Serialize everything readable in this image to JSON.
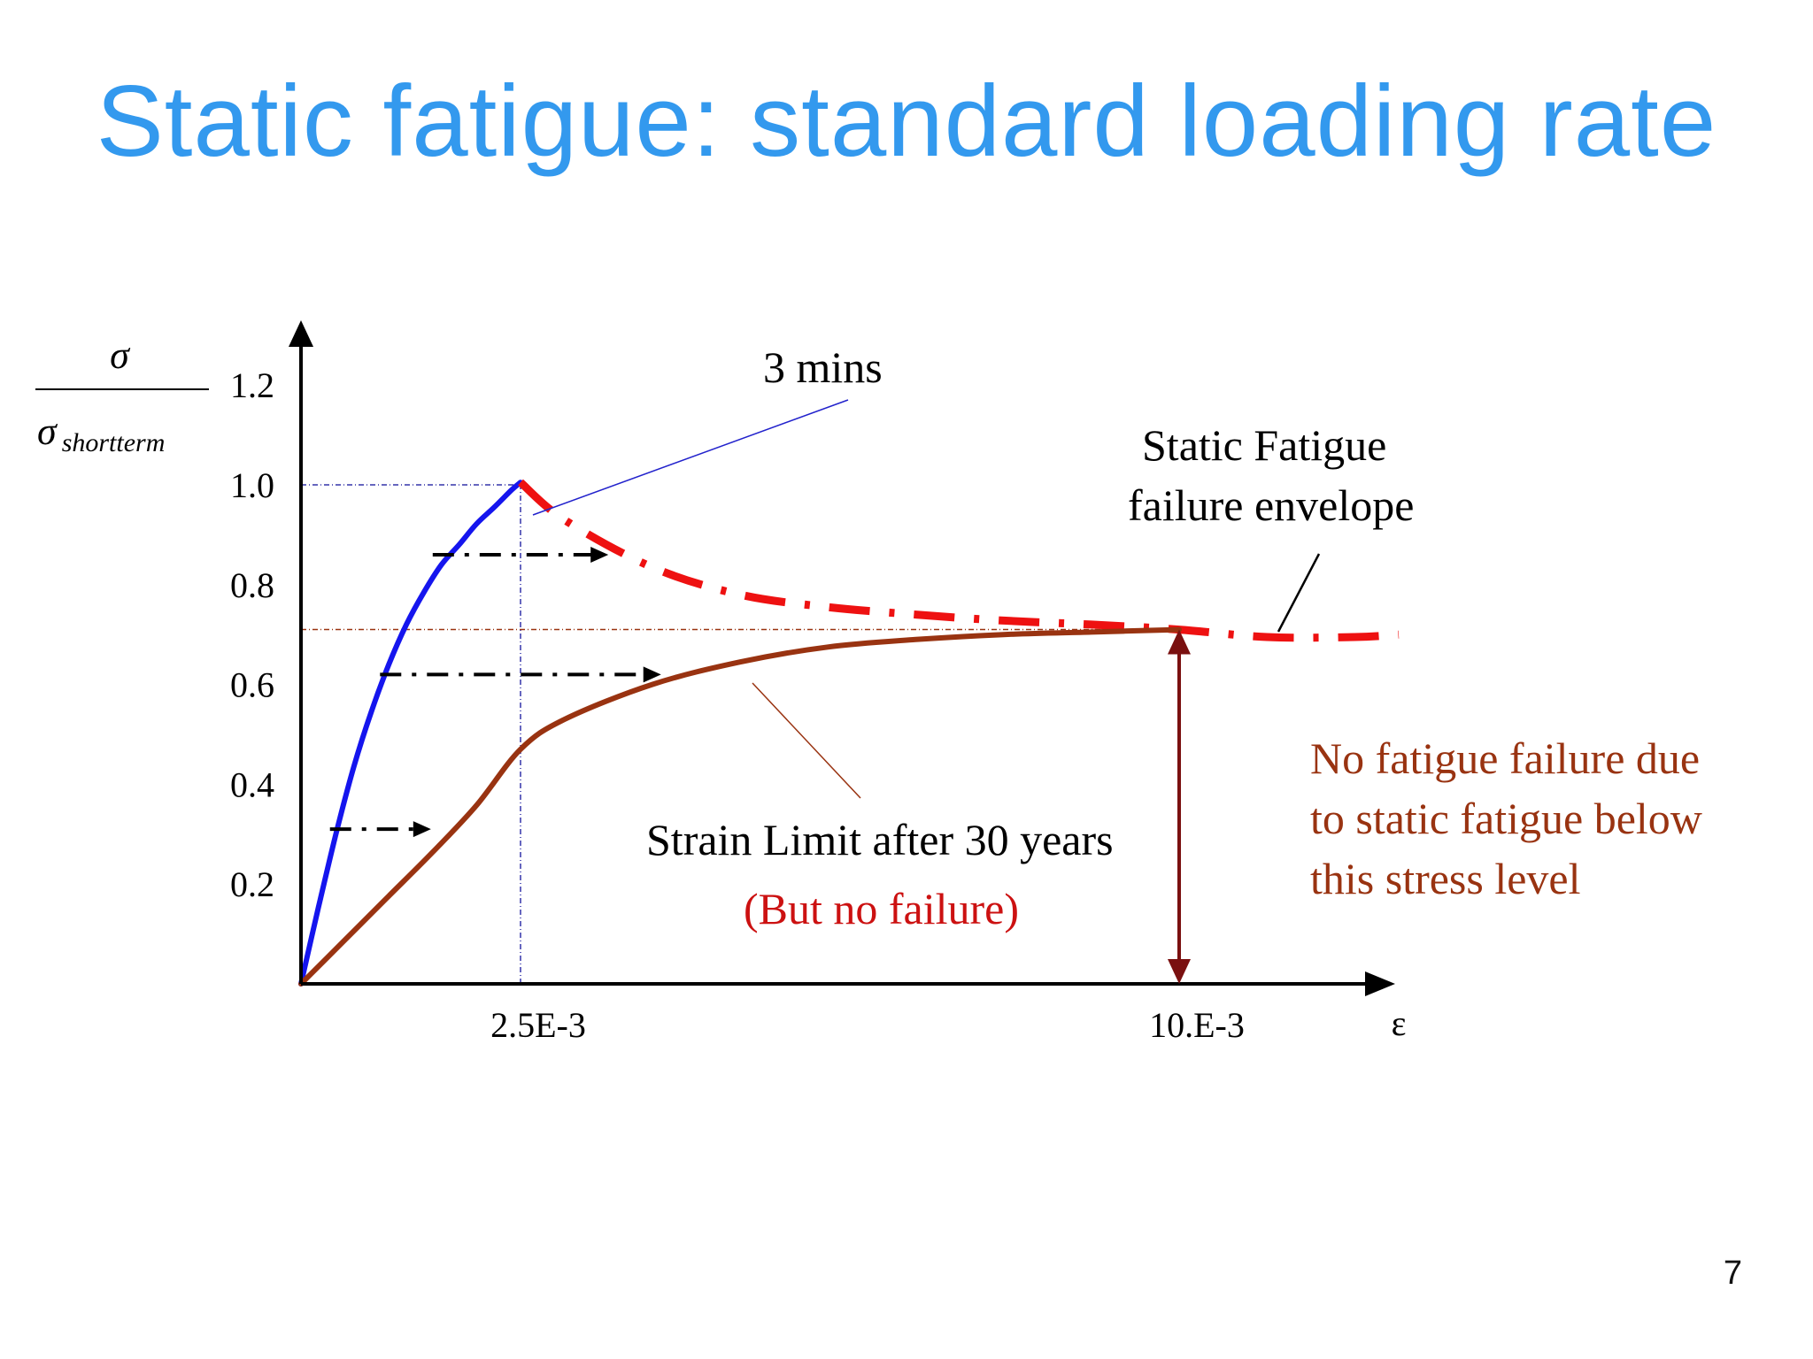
{
  "slide": {
    "title": "Static fatigue: standard loading rate",
    "page_number": "7"
  },
  "chart_data": {
    "type": "line",
    "title": "",
    "ylabel": {
      "numerator": "σ",
      "denominator_symbol": "σ",
      "denominator_subscript": "shortterm"
    },
    "xlabel": "ε",
    "xlim": [
      0,
      0.0125
    ],
    "ylim": [
      0,
      1.3
    ],
    "y_ticks": [
      {
        "value": 0.2,
        "label": "0.2"
      },
      {
        "value": 0.4,
        "label": "0.4"
      },
      {
        "value": 0.6,
        "label": "0.6"
      },
      {
        "value": 0.8,
        "label": "0.8"
      },
      {
        "value": 1.0,
        "label": "1.0"
      },
      {
        "value": 1.2,
        "label": "1.2"
      }
    ],
    "x_ticks": [
      {
        "value": 0.0025,
        "label": "2.5E-3"
      },
      {
        "value": 0.01,
        "label": "10.E-3"
      }
    ],
    "grid": false,
    "series": [
      {
        "role": "short-term-loading",
        "color": "#1515ee",
        "style": "solid",
        "x": [
          0,
          0.0002,
          0.0004,
          0.0006,
          0.0008,
          0.001,
          0.0012,
          0.0014,
          0.0016,
          0.0018,
          0.002,
          0.0022,
          0.0024,
          0.0025
        ],
        "y": [
          0,
          0.154,
          0.302,
          0.434,
          0.545,
          0.64,
          0.72,
          0.785,
          0.84,
          0.88,
          0.922,
          0.955,
          0.99,
          1.005
        ]
      },
      {
        "role": "static-fatigue-failure-envelope",
        "color": "#ee1111",
        "style": "dashdot",
        "x": [
          0.0025,
          0.003,
          0.004,
          0.005,
          0.006,
          0.007,
          0.008,
          0.009,
          0.01,
          0.011,
          0.012,
          0.0125
        ],
        "y": [
          1.005,
          0.93,
          0.835,
          0.78,
          0.755,
          0.74,
          0.728,
          0.72,
          0.71,
          0.695,
          0.695,
          0.7
        ]
      },
      {
        "role": "strain-limit-after-30-years",
        "color": "#993311",
        "style": "solid",
        "x": [
          0,
          0.0005,
          0.001,
          0.0015,
          0.002,
          0.0025,
          0.003,
          0.004,
          0.005,
          0.006,
          0.007,
          0.008,
          0.009,
          0.01
        ],
        "y": [
          0,
          0.088,
          0.176,
          0.264,
          0.358,
          0.47,
          0.53,
          0.6,
          0.645,
          0.675,
          0.69,
          0.7,
          0.705,
          0.71
        ]
      }
    ],
    "reference_lines": [
      {
        "role": "y-1.0-guide",
        "color": "#3333aa",
        "y": 1.0,
        "x_from": 0,
        "x_to": 0.0025
      },
      {
        "role": "x-2.5e-3-guide",
        "color": "#3333aa",
        "x": 0.0025,
        "y_from": 0,
        "y_to": 1.0
      },
      {
        "role": "y-0.71-guide",
        "color": "#993311",
        "y": 0.71,
        "x_from": 0,
        "x_to": 0.01
      }
    ],
    "creep_arrows": [
      {
        "y": 0.86,
        "x_from": 0.0015,
        "x_to": 0.0035
      },
      {
        "y": 0.62,
        "x_from": 0.0009,
        "x_to": 0.0041
      },
      {
        "y": 0.31,
        "x_from": 0.00033,
        "x_to": 0.00148
      }
    ],
    "stress_level_arrow": {
      "x": 0.01,
      "y_from": 0,
      "y_to": 0.71,
      "color": "#7a1010"
    },
    "annotations": [
      {
        "key": "three_mins",
        "text": "3 mins",
        "color": "#000000"
      },
      {
        "key": "envelope_line1",
        "text": "Static Fatigue",
        "color": "#000000"
      },
      {
        "key": "envelope_line2",
        "text": "failure envelope",
        "color": "#000000"
      },
      {
        "key": "strain_limit",
        "text": "Strain Limit after 30 years",
        "color": "#000000"
      },
      {
        "key": "no_failure",
        "text": "(But no failure)",
        "color": "#cc1111"
      },
      {
        "key": "note_line1",
        "text": "No fatigue failure due",
        "color": "#993311"
      },
      {
        "key": "note_line2",
        "text": "to static fatigue below",
        "color": "#993311"
      },
      {
        "key": "note_line3",
        "text": "this stress level",
        "color": "#993311"
      }
    ]
  }
}
